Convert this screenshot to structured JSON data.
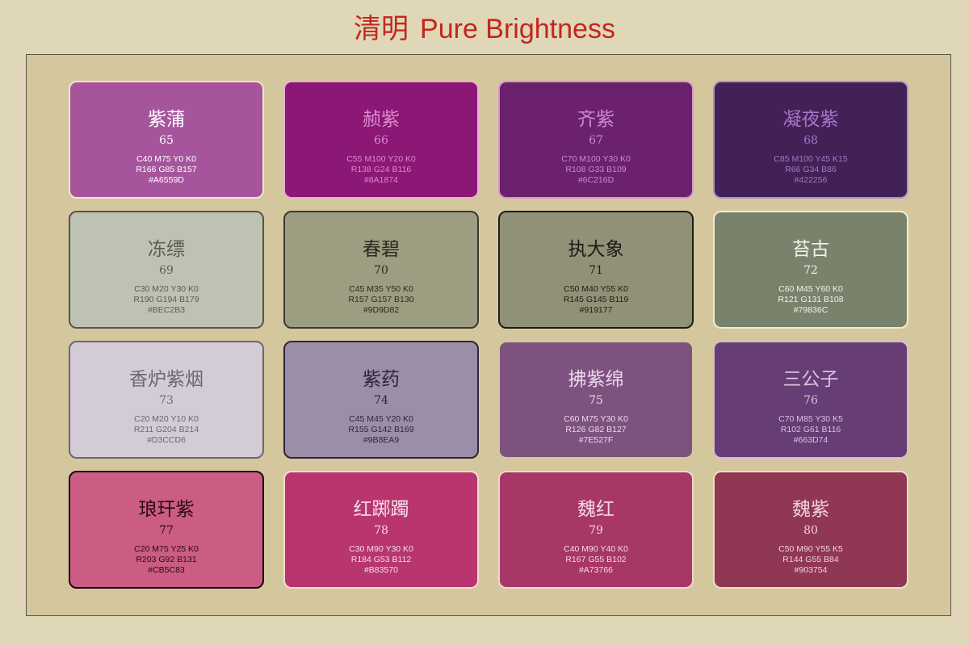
{
  "header": {
    "title_cn": "清明",
    "title_en": "Pure Brightness"
  },
  "cards": [
    {
      "name": "紫蒲",
      "number": "65",
      "cmyk": "C40 M75 Y0 K0",
      "rgb": "R166 G85 B157",
      "hex": "#A6559D",
      "fill": "#A6559D",
      "text_color": "#ffffff",
      "info_color": "#ffffff",
      "border_color": "#f3e3c8"
    },
    {
      "name": "赪紫",
      "number": "66",
      "cmyk": "C55 M100 Y20 K0",
      "rgb": "R138 G24 B116",
      "hex": "#8A1874",
      "fill": "#8A1874",
      "text_color": "#dc8ad0",
      "info_color": "#dc8ad0",
      "border_color": "#e6b0d2"
    },
    {
      "name": "齐紫",
      "number": "67",
      "cmyk": "C70 M100 Y30 K0",
      "rgb": "R108 G33 B109",
      "hex": "#6C216D",
      "fill": "#6C216D",
      "text_color": "#c68ad0",
      "info_color": "#c68ad0",
      "border_color": "#d896cc"
    },
    {
      "name": "凝夜紫",
      "number": "68",
      "cmyk": "C85 M100 Y45 K15",
      "rgb": "R66 G34 B86",
      "hex": "#422256",
      "fill": "#422256",
      "text_color": "#a873c8",
      "info_color": "#a873c8",
      "border_color": "#b090c8"
    },
    {
      "name": "冻缥",
      "number": "69",
      "cmyk": "C30 M20 Y30 K0",
      "rgb": "R190 G194 B179",
      "hex": "#BEC2B3",
      "fill": "#BEC2B3",
      "text_color": "#5a5d54",
      "info_color": "#5a5d54",
      "border_color": "#5a5446"
    },
    {
      "name": "春碧",
      "number": "70",
      "cmyk": "C45 M35 Y50 K0",
      "rgb": "R157 G157 B130",
      "hex": "#9D9D82",
      "fill": "#9D9D82",
      "text_color": "#2a2a22",
      "info_color": "#2a2a22",
      "border_color": "#3a3a30"
    },
    {
      "name": "执大象",
      "number": "71",
      "cmyk": "C50 M40 Y55 K0",
      "rgb": "R145 G145 B119",
      "hex": "#919177",
      "fill": "#919177",
      "text_color": "#1c1c16",
      "info_color": "#1c1c16",
      "border_color": "#1c1c16"
    },
    {
      "name": "苔古",
      "number": "72",
      "cmyk": "C60 M45 Y60 K0",
      "rgb": "R121 G131 B108",
      "hex": "#79836C",
      "fill": "#79836C",
      "text_color": "#f3f3ea",
      "info_color": "#f3f3ea",
      "border_color": "#f3ebd0"
    },
    {
      "name": "香炉紫烟",
      "number": "73",
      "cmyk": "C20 M20 Y10 K0",
      "rgb": "R211 G204 B214",
      "hex": "#D3CCD6",
      "fill": "#D3CCD6",
      "text_color": "#6e6672",
      "info_color": "#6e6672",
      "border_color": "#6e6672"
    },
    {
      "name": "紫药",
      "number": "74",
      "cmyk": "C45 M45 Y20 K0",
      "rgb": "R155 G142 B169",
      "hex": "#9B8EA9",
      "fill": "#9B8EA9",
      "text_color": "#2e2638",
      "info_color": "#2e2638",
      "border_color": "#2e2638"
    },
    {
      "name": "拂紫绵",
      "number": "75",
      "cmyk": "C60 M75 Y30 K0",
      "rgb": "R126 G82 B127",
      "hex": "#7E527F",
      "fill": "#7E527F",
      "text_color": "#ead8ea",
      "info_color": "#ead8ea",
      "border_color": "#d5c79d"
    },
    {
      "name": "三公子",
      "number": "76",
      "cmyk": "C70 M85 Y30 K5",
      "rgb": "R102 G61 B116",
      "hex": "#663D74",
      "fill": "#663D74",
      "text_color": "#d8c2e2",
      "info_color": "#d8c2e2",
      "border_color": "#d6b8d8"
    },
    {
      "name": "琅玕紫",
      "number": "77",
      "cmyk": "C20 M75 Y25 K0",
      "rgb": "R203 G92 B131",
      "hex": "#CB5C83",
      "fill": "#CB5C83",
      "text_color": "#2a0c16",
      "info_color": "#2a0c16",
      "border_color": "#1c0810"
    },
    {
      "name": "红踯躅",
      "number": "78",
      "cmyk": "C30 M90 Y30 K0",
      "rgb": "R184 G53 B112",
      "hex": "#B83570",
      "fill": "#B83570",
      "text_color": "#f6dce6",
      "info_color": "#f6dce6",
      "border_color": "#f3dccc"
    },
    {
      "name": "魏红",
      "number": "79",
      "cmyk": "C40 M90 Y40 K0",
      "rgb": "R167 G55 B102",
      "hex": "#A73766",
      "fill": "#A73766",
      "text_color": "#f3d8e2",
      "info_color": "#f3d8e2",
      "border_color": "#f0d8c8"
    },
    {
      "name": "魏紫",
      "number": "80",
      "cmyk": "C50 M90 Y55 K5",
      "rgb": "R144 G55 B84",
      "hex": "#903754",
      "fill": "#903754",
      "text_color": "#f0d2dc",
      "info_color": "#f0d2dc",
      "border_color": "#f0dcc8"
    }
  ]
}
